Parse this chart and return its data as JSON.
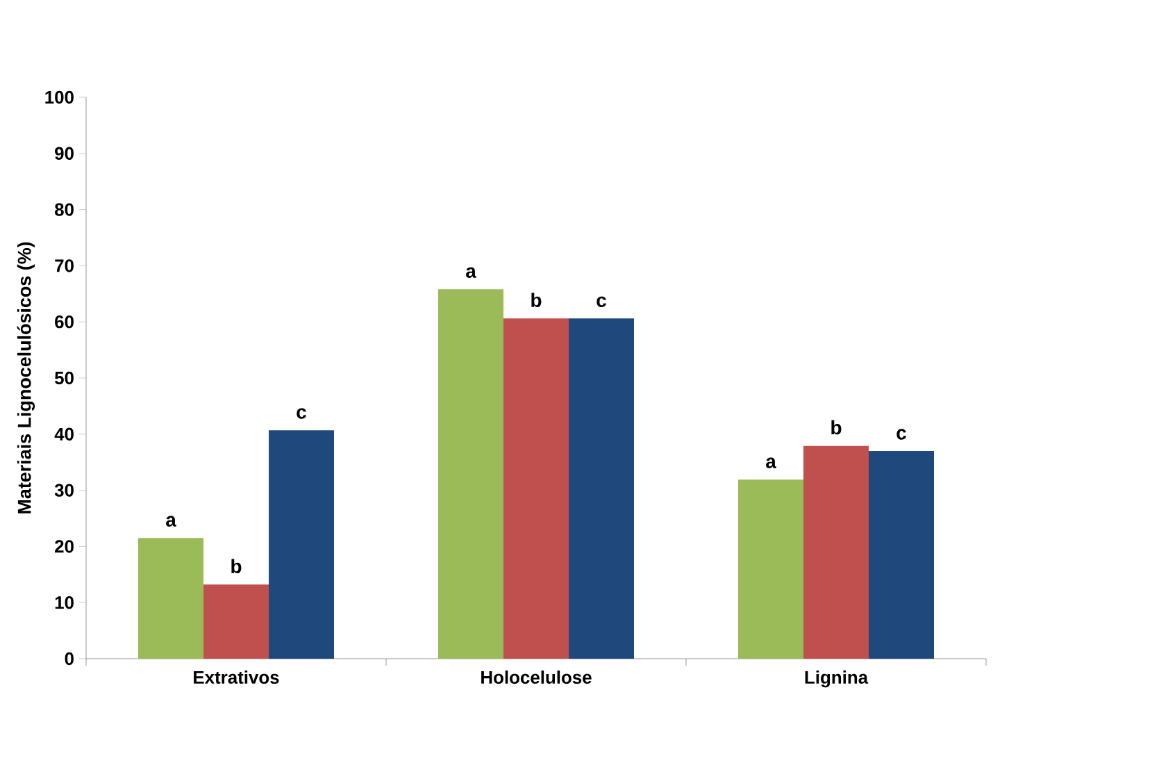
{
  "chart_data": {
    "type": "bar",
    "ylabel": "Materiais Lignocelulósicos (%)",
    "categories": [
      "Extrativos",
      "Holocelulose",
      "Lignina"
    ],
    "series": [
      {
        "color": "#9bbb59",
        "values": [
          21.5,
          65.8,
          31.9
        ],
        "value_labels": [
          "a",
          "a",
          "a"
        ]
      },
      {
        "color": "#c0504d",
        "values": [
          13.2,
          60.6,
          37.9
        ],
        "value_labels": [
          "b",
          "b",
          "b"
        ]
      },
      {
        "color": "#1f497d",
        "values": [
          40.7,
          60.6,
          37.0
        ],
        "value_labels": [
          "c",
          "c",
          "c"
        ]
      }
    ],
    "ylim": [
      0,
      100
    ],
    "yticks": [
      0,
      10,
      20,
      30,
      40,
      50,
      60,
      70,
      80,
      90,
      100
    ]
  }
}
